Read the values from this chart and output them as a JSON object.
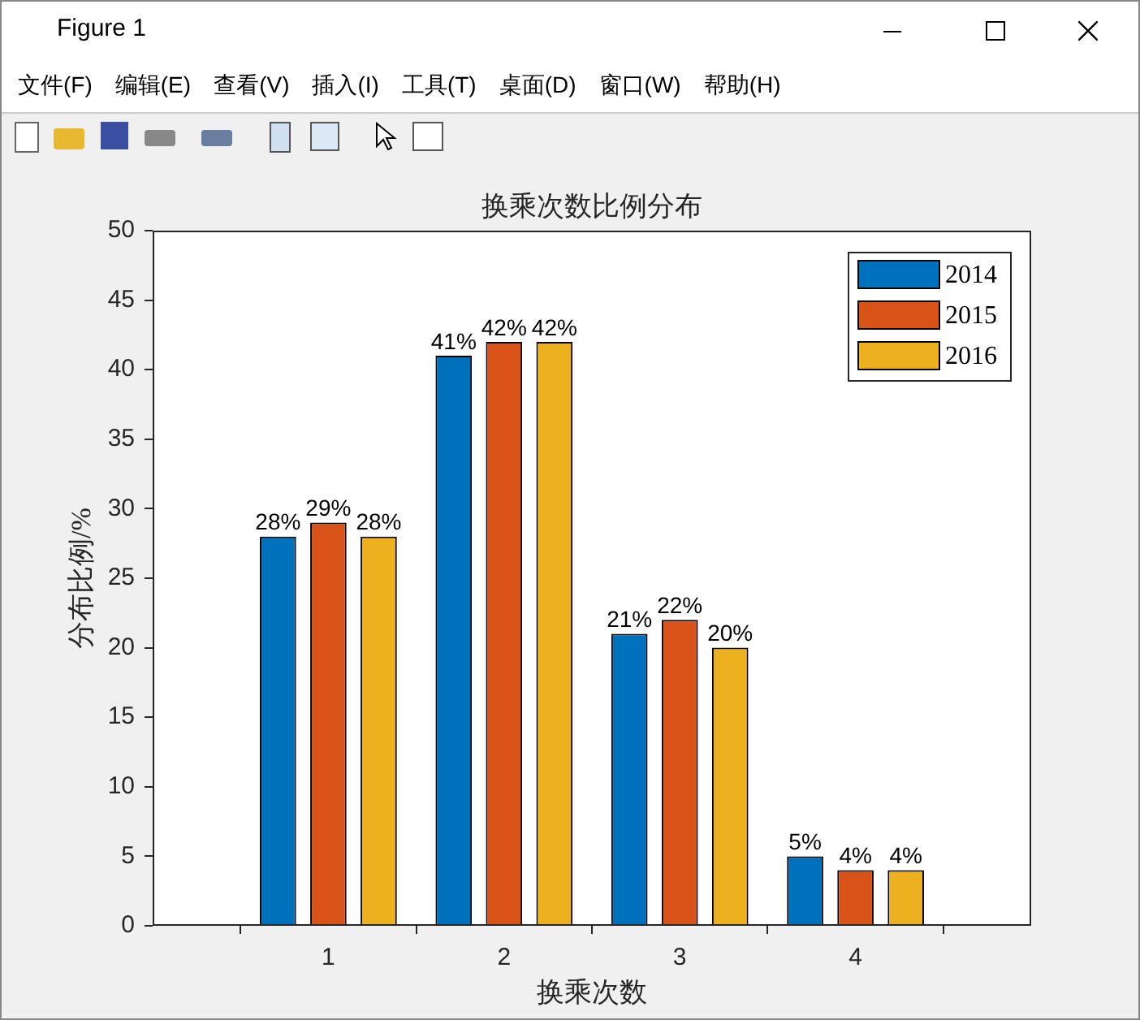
{
  "chart_data": {
    "type": "bar",
    "title": "换乘次数比例分布",
    "xlabel": "换乘次数",
    "ylabel": "分布比例/%",
    "x": [
      1,
      2,
      3,
      4
    ],
    "xlim": [
      0,
      5
    ],
    "xticks": [
      1,
      2,
      3,
      4
    ],
    "ylim": [
      0,
      50
    ],
    "yticks": [
      0,
      5,
      10,
      15,
      20,
      25,
      30,
      35,
      40,
      45,
      50
    ],
    "legend": "top right",
    "series": [
      {
        "name": "2014",
        "color": "#0072bd",
        "values": [
          28,
          41,
          21,
          5
        ],
        "value_labels": [
          "28%",
          "41%",
          "21%",
          "5%"
        ]
      },
      {
        "name": "2015",
        "color": "#d95319",
        "values": [
          29,
          42,
          22,
          4
        ],
        "value_labels": [
          "29%",
          "42%",
          "22%",
          "4%"
        ]
      },
      {
        "name": "2016",
        "color": "#edb120",
        "values": [
          28,
          42,
          20,
          4
        ],
        "value_labels": [
          "28%",
          "42%",
          "20%",
          "4%"
        ]
      }
    ],
    "annotations": [
      "Figure 1",
      "文件(F)",
      "编辑(E)",
      "查看(V)",
      "插入(I)",
      "工具(T)",
      "桌面(D)",
      "窗口(W)",
      "帮助(H)"
    ]
  }
}
